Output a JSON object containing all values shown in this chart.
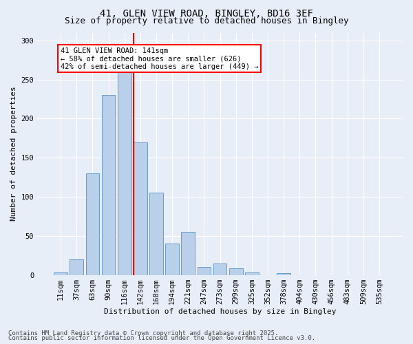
{
  "title1": "41, GLEN VIEW ROAD, BINGLEY, BD16 3EF",
  "title2": "Size of property relative to detached houses in Bingley",
  "xlabel": "Distribution of detached houses by size in Bingley",
  "ylabel": "Number of detached properties",
  "categories": [
    "11sqm",
    "37sqm",
    "63sqm",
    "90sqm",
    "116sqm",
    "142sqm",
    "168sqm",
    "194sqm",
    "221sqm",
    "247sqm",
    "273sqm",
    "299sqm",
    "325sqm",
    "352sqm",
    "378sqm",
    "404sqm",
    "430sqm",
    "456sqm",
    "483sqm",
    "509sqm",
    "535sqm"
  ],
  "values": [
    3,
    20,
    130,
    230,
    260,
    170,
    105,
    40,
    55,
    10,
    15,
    8,
    3,
    0,
    2,
    0,
    0,
    0,
    0,
    0,
    0
  ],
  "bar_color": "#b8d0ea",
  "bar_edge_color": "#6699cc",
  "red_line_index": 5,
  "annotation_text": "41 GLEN VIEW ROAD: 141sqm\n← 58% of detached houses are smaller (626)\n42% of semi-detached houses are larger (449) →",
  "annotation_box_color": "white",
  "annotation_box_edge": "red",
  "ylim": [
    0,
    310
  ],
  "yticks": [
    0,
    50,
    100,
    150,
    200,
    250,
    300
  ],
  "bg_color": "#e8eef8",
  "grid_color": "#ffffff",
  "footnote1": "Contains HM Land Registry data © Crown copyright and database right 2025.",
  "footnote2": "Contains public sector information licensed under the Open Government Licence v3.0.",
  "title1_fontsize": 10,
  "title2_fontsize": 9,
  "axis_label_fontsize": 8,
  "tick_fontsize": 7.5,
  "annotation_fontsize": 7.5,
  "footnote_fontsize": 6.5
}
